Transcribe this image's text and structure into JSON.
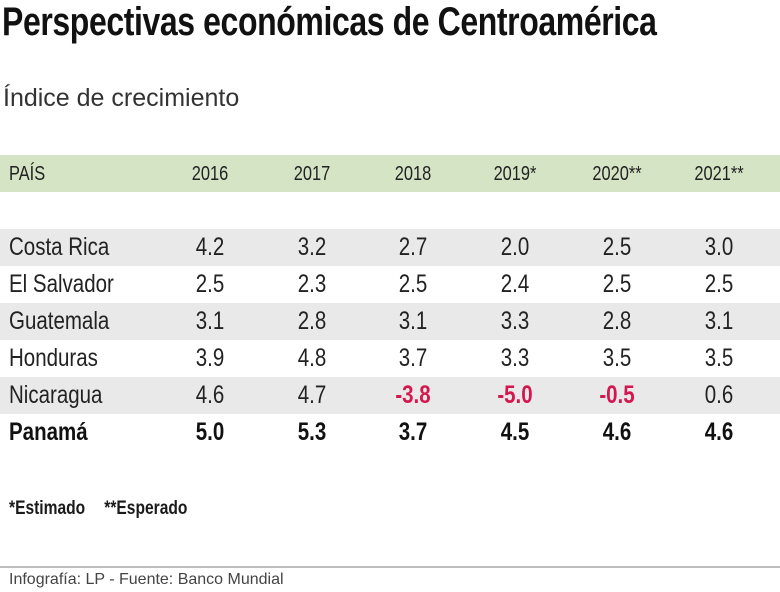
{
  "chart_data": {
    "type": "table",
    "title": "Perspectivas económicas de Centroamérica",
    "subtitle": "Índice de crecimiento",
    "columns": [
      "PAÍS",
      "2016",
      "2017",
      "2018",
      "2019*",
      "2020**",
      "2021**"
    ],
    "rows": [
      {
        "country": "Costa Rica",
        "values": [
          "4.2",
          "3.2",
          "2.7",
          "2.0",
          "2.5",
          "3.0"
        ]
      },
      {
        "country": "El Salvador",
        "values": [
          "2.5",
          "2.3",
          "2.5",
          "2.4",
          "2.5",
          "2.5"
        ]
      },
      {
        "country": "Guatemala",
        "values": [
          "3.1",
          "2.8",
          "3.1",
          "3.3",
          "2.8",
          "3.1"
        ]
      },
      {
        "country": "Honduras",
        "values": [
          "3.9",
          "4.8",
          "3.7",
          "3.3",
          "3.5",
          "3.5"
        ]
      },
      {
        "country": "Nicaragua",
        "values": [
          "4.6",
          "4.7",
          "-3.8",
          "-5.0",
          "-0.5",
          "0.6"
        ]
      },
      {
        "country": "Panamá",
        "values": [
          "5.0",
          "5.3",
          "3.7",
          "4.5",
          "4.6",
          "4.6"
        ],
        "bold": true
      }
    ],
    "notes": [
      "*Estimado",
      "**Esperado"
    ],
    "source": "Infografía: LP - Fuente: Banco Mundial",
    "colors": {
      "header_bg": "#d6e4c6",
      "alt_row_bg": "#e9e9e9",
      "negative": "#d3184f"
    }
  }
}
